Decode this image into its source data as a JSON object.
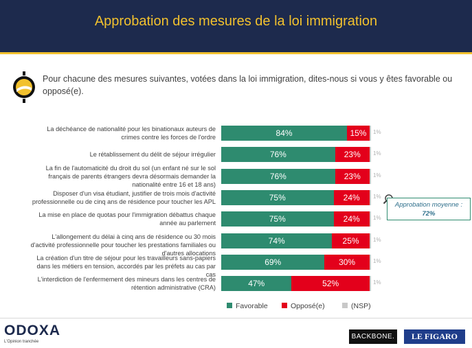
{
  "header": {
    "title": "Approbation des mesures de la loi immigration"
  },
  "question": "Pour chacune des mesures suivantes, votées dans la loi immigration, dites-nous si vous y êtes favorable ou opposé(e).",
  "chart_data": {
    "type": "bar",
    "orientation": "horizontal",
    "stacked": true,
    "categories": [
      "La déchéance de nationalité pour les binationaux auteurs de crimes contre les forces de l'ordre",
      "Le rétablissement du délit de séjour irrégulier",
      "La fin de l'automaticité du droit du sol (un enfant né sur le sol français de parents étrangers devra désormais demander la nationalité entre 16 et 18 ans)",
      "Disposer d'un visa étudiant, justifier de trois mois d'activité professionnelle ou de cinq ans de résidence pour toucher les APL",
      "La mise en place de quotas pour l'immigration débattus chaque année au parlement",
      "L'allongement du délai à cinq ans de résidence ou 30 mois d'activité professionnelle pour toucher les prestations familiales ou d'autres allocations",
      "La création d'un titre de séjour pour les travailleurs sans-papiers dans les métiers en tension, accordés par les préfets au cas par cas",
      "L'interdiction de l'enfermement des mineurs dans les centres de rétention administrative (CRA)"
    ],
    "series": [
      {
        "name": "Favorable",
        "color": "#2e8b6f",
        "values": [
          84,
          76,
          76,
          75,
          75,
          74,
          69,
          47
        ]
      },
      {
        "name": "Opposé(e)",
        "color": "#e3001b",
        "values": [
          15,
          23,
          23,
          24,
          24,
          25,
          30,
          52
        ]
      },
      {
        "name": "(NSP)",
        "color": "#c8c8c8",
        "values": [
          1,
          1,
          1,
          1,
          1,
          1,
          1,
          1
        ]
      }
    ],
    "value_suffix": "%",
    "xlim": [
      0,
      100
    ],
    "legend_position": "bottom",
    "grid": false
  },
  "annotation": {
    "label": "Approbation moyenne :",
    "value": "72%"
  },
  "footer": {
    "odoxa_name": "ODOXA",
    "odoxa_tagline": "L'Opinion tranchée",
    "backbone": "BACKBONE.",
    "figaro": "LE FIGARO"
  }
}
